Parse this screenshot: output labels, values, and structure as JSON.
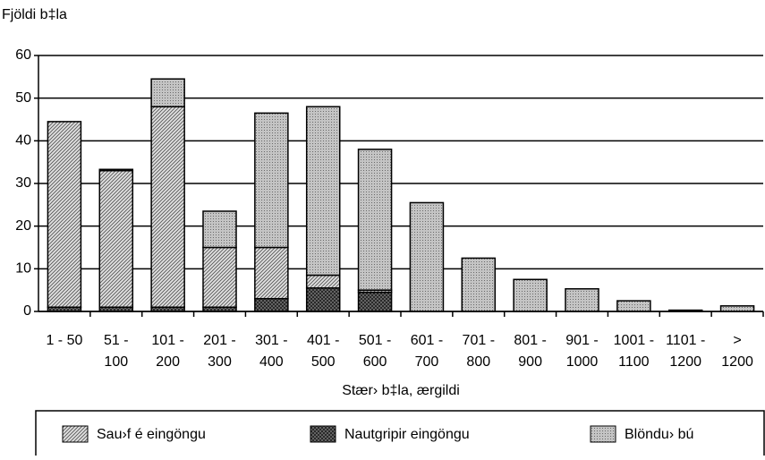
{
  "chart_data": {
    "type": "stacked_bar",
    "y_label": "Fjöldi b‡la",
    "x_label": "Stær› b‡la, ærgildi",
    "categories": [
      [
        "1 - 50"
      ],
      [
        "51 -",
        "100"
      ],
      [
        "101 -",
        "200"
      ],
      [
        "201 -",
        "300"
      ],
      [
        "301 -",
        "400"
      ],
      [
        "401 -",
        "500"
      ],
      [
        "501 -",
        "600"
      ],
      [
        "601 -",
        "700"
      ],
      [
        "701 -",
        "800"
      ],
      [
        "801 -",
        "900"
      ],
      [
        "901 -",
        "1000"
      ],
      [
        "1001 -",
        "1100"
      ],
      [
        "1101 -",
        "1200"
      ],
      [
        ">",
        "1200"
      ]
    ],
    "series": [
      {
        "name": "Nautgripir eingöngu",
        "color": "#303030",
        "pattern": "crosshatch",
        "values": [
          1,
          1,
          1,
          1,
          3,
          5.5,
          4.5,
          0,
          0,
          0,
          0,
          0,
          0,
          0
        ]
      },
      {
        "name": "Sau›f é eingöngu",
        "color": "#b8b8b8",
        "pattern": "diagonal",
        "values": [
          43.5,
          32,
          47,
          14,
          12,
          3,
          0.5,
          0,
          0,
          0,
          0,
          0,
          0,
          0
        ]
      },
      {
        "name": "Blöndu› bú",
        "color": "#a8a8a8",
        "pattern": "dots",
        "values": [
          0,
          0.3,
          6.5,
          8.5,
          31.5,
          39.5,
          33,
          25.5,
          12.5,
          7.5,
          5.3,
          2.5,
          0.3,
          1.3
        ]
      }
    ],
    "legend_order": [
      1,
      0,
      2
    ],
    "ylim": [
      0,
      60
    ],
    "yticks": [
      0,
      10,
      20,
      30,
      40,
      50,
      60
    ],
    "grid": true
  }
}
